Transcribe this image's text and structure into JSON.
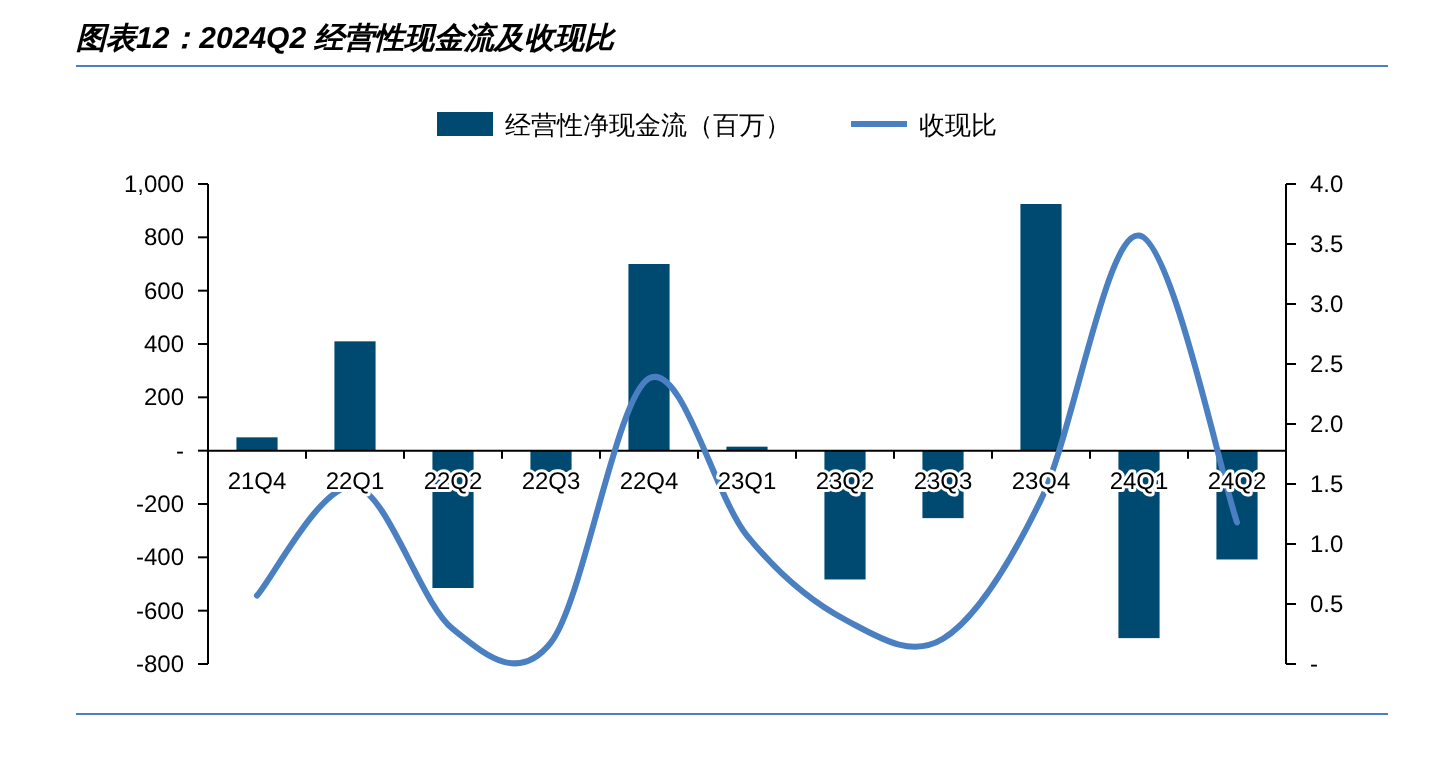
{
  "chart_data": {
    "type": "bar",
    "title": "图表12：2024Q2 经营性现金流及收现比",
    "categories": [
      "21Q4",
      "22Q1",
      "22Q2",
      "22Q3",
      "22Q4",
      "23Q1",
      "23Q2",
      "23Q3",
      "23Q4",
      "24Q1",
      "24Q2"
    ],
    "series": [
      {
        "name": "经营性净现金流（百万）",
        "color": "#004a72",
        "values": [
          50,
          410,
          -515,
          -80,
          700,
          15,
          -483,
          -253,
          925,
          -703,
          -408
        ]
      },
      {
        "name": "收现比",
        "type": "line",
        "axis": "y2",
        "color": "#4a80c2",
        "values": [
          0.57,
          1.48,
          0.29,
          0.18,
          2.38,
          1.07,
          0.37,
          0.21,
          1.37,
          3.57,
          1.18
        ]
      }
    ],
    "ylim": [
      -800,
      1000
    ],
    "yticks": [
      {
        "value": 1000,
        "label": "1,000"
      },
      800,
      600,
      400,
      200,
      {
        "value": 0,
        "label": "-"
      },
      -200,
      -400,
      -600,
      -800
    ],
    "y2lim": [
      0,
      4
    ],
    "y2ticks": [
      {
        "value": 0,
        "label": "-"
      },
      {
        "value": 0.5,
        "label": "0.5"
      },
      {
        "value": 1,
        "label": "1.0"
      },
      {
        "value": 1.5,
        "label": "1.5"
      },
      {
        "value": 2,
        "label": "2.0"
      },
      {
        "value": 2.5,
        "label": "2.5"
      },
      {
        "value": 3,
        "label": "3.0"
      },
      {
        "value": 3.5,
        "label": "3.5"
      },
      {
        "value": 4,
        "label": "4.0"
      }
    ],
    "legend": "top"
  }
}
